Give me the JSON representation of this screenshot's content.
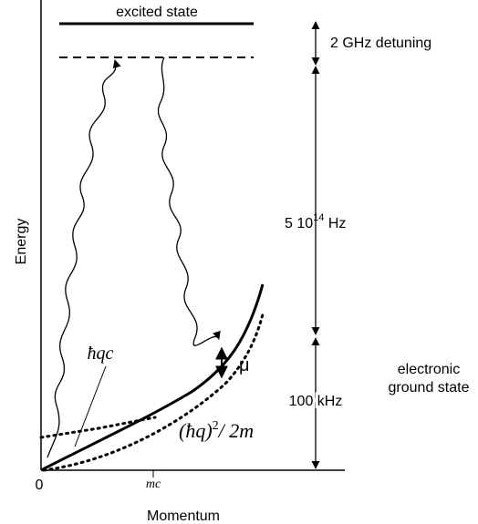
{
  "labels": {
    "excited_state": "excited state",
    "detuning": "2 GHz detuning",
    "freq_base": "5 10",
    "freq_exp": "14",
    "freq_unit": " Hz",
    "energy_axis": "Energy",
    "momentum_axis": "Momentum",
    "origin": "0",
    "mc_tick": "mc",
    "hqc": "ħqc",
    "mu": "μ",
    "quad_open": "(ħq)",
    "quad_exp": "2",
    "quad_rest": "/ 2m",
    "ground_line1": "electronic",
    "ground_line2": "ground state",
    "khz": "100 kHz"
  },
  "colors": {
    "ink": "#000000",
    "background": "#ffffff"
  }
}
